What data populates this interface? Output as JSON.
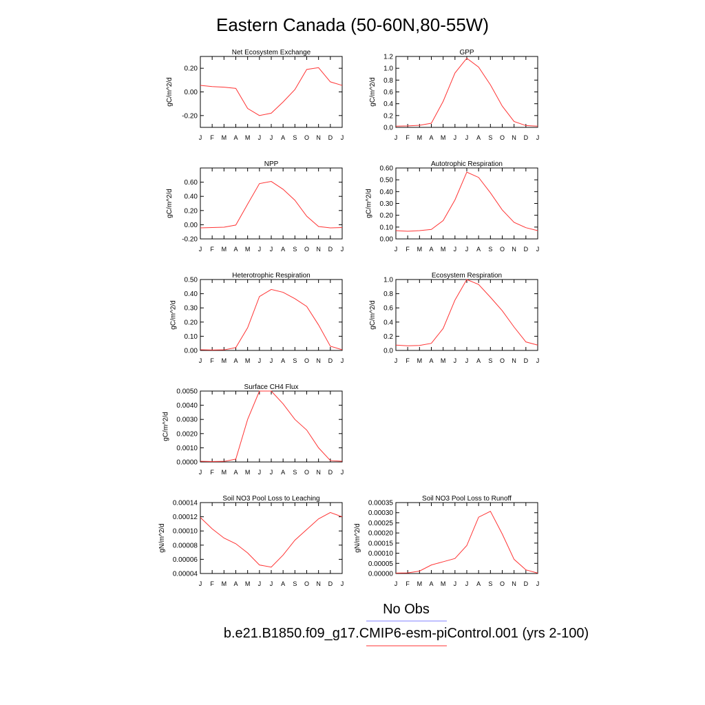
{
  "title": "Eastern Canada (50-60N,80-55W)",
  "months": [
    "J",
    "F",
    "M",
    "A",
    "M",
    "J",
    "J",
    "A",
    "S",
    "O",
    "N",
    "D",
    "J"
  ],
  "legend": {
    "obs_label": "No Obs",
    "obs_color": "#8080ff",
    "model_label": "b.e21.B1850.f09_g17.CMIP6-esm-piControl.001 (yrs 2-100)",
    "model_color": "#ff3333"
  },
  "chart_data": [
    {
      "type": "line",
      "title": "Net Ecosystem Exchange",
      "ylabel": "gC/m^2/d",
      "ylim": [
        -0.3,
        0.3
      ],
      "yticks": [
        "-0.20",
        "0.00",
        "0.20"
      ],
      "ytick_values": [
        -0.2,
        0.0,
        0.2
      ],
      "series": [
        {
          "values": [
            0.055,
            0.045,
            0.04,
            0.03,
            -0.14,
            -0.2,
            -0.18,
            -0.085,
            0.02,
            0.19,
            0.205,
            0.085,
            0.055
          ]
        }
      ]
    },
    {
      "type": "line",
      "title": "GPP",
      "ylabel": "gC/m^2/d",
      "ylim": [
        0,
        1.2
      ],
      "yticks": [
        "0.0",
        "0.2",
        "0.4",
        "0.6",
        "0.8",
        "1.0",
        "1.2"
      ],
      "ytick_values": [
        0,
        0.2,
        0.4,
        0.6,
        0.8,
        1.0,
        1.2
      ],
      "series": [
        {
          "values": [
            0.02,
            0.025,
            0.035,
            0.07,
            0.44,
            0.92,
            1.17,
            1.02,
            0.72,
            0.36,
            0.1,
            0.03,
            0.02
          ]
        }
      ]
    },
    {
      "type": "line",
      "title": "NPP",
      "ylabel": "gC/m^2/d",
      "ylim": [
        -0.2,
        0.8
      ],
      "yticks": [
        "-0.20",
        "0.00",
        "0.20",
        "0.40",
        "0.60"
      ],
      "ytick_values": [
        -0.2,
        0.0,
        0.2,
        0.4,
        0.6
      ],
      "series": [
        {
          "values": [
            -0.045,
            -0.04,
            -0.035,
            -0.005,
            0.29,
            0.58,
            0.61,
            0.5,
            0.345,
            0.12,
            -0.025,
            -0.045,
            -0.04
          ]
        }
      ]
    },
    {
      "type": "line",
      "title": "Autotrophic Respiration",
      "ylabel": "gC/m^2/d",
      "ylim": [
        0,
        0.6
      ],
      "yticks": [
        "0.00",
        "0.10",
        "0.20",
        "0.30",
        "0.40",
        "0.50",
        "0.60"
      ],
      "ytick_values": [
        0,
        0.1,
        0.2,
        0.3,
        0.4,
        0.5,
        0.6
      ],
      "series": [
        {
          "values": [
            0.07,
            0.065,
            0.07,
            0.08,
            0.155,
            0.33,
            0.565,
            0.52,
            0.39,
            0.245,
            0.14,
            0.095,
            0.07
          ]
        }
      ]
    },
    {
      "type": "line",
      "title": "Heterotrophic Respiration",
      "ylabel": "gC/m^2/d",
      "ylim": [
        0,
        0.5
      ],
      "yticks": [
        "0.00",
        "0.10",
        "0.20",
        "0.30",
        "0.40",
        "0.50"
      ],
      "ytick_values": [
        0,
        0.1,
        0.2,
        0.3,
        0.4,
        0.5
      ],
      "series": [
        {
          "values": [
            0.005,
            0.003,
            0.004,
            0.02,
            0.16,
            0.38,
            0.43,
            0.41,
            0.365,
            0.31,
            0.18,
            0.03,
            0.005
          ]
        }
      ]
    },
    {
      "type": "line",
      "title": "Ecosystem Respiration",
      "ylabel": "gC/m^2/d",
      "ylim": [
        0,
        1.0
      ],
      "yticks": [
        "0.0",
        "0.2",
        "0.4",
        "0.6",
        "0.8",
        "1.0"
      ],
      "ytick_values": [
        0,
        0.2,
        0.4,
        0.6,
        0.8,
        1.0
      ],
      "series": [
        {
          "values": [
            0.075,
            0.065,
            0.07,
            0.1,
            0.31,
            0.71,
            1.0,
            0.93,
            0.75,
            0.56,
            0.33,
            0.12,
            0.075
          ]
        }
      ]
    },
    {
      "type": "line",
      "title": "Surface CH4 Flux",
      "ylabel": "gC/m^2/d",
      "ylim": [
        0,
        0.005
      ],
      "yticks": [
        "0.0000",
        "0.0010",
        "0.0020",
        "0.0030",
        "0.0040",
        "0.0050"
      ],
      "ytick_values": [
        0,
        0.001,
        0.002,
        0.003,
        0.004,
        0.005
      ],
      "series": [
        {
          "values": [
            5e-05,
            3e-05,
            4e-05,
            0.0002,
            0.003,
            0.005,
            0.005,
            0.0041,
            0.003,
            0.00225,
            0.001,
            0.0001,
            5e-05
          ]
        }
      ]
    },
    {
      "type": "line",
      "title": "Soil NO3 Pool Loss to Leaching",
      "ylabel": "gN/m^2/d",
      "ylim": [
        4e-05,
        0.00014
      ],
      "yticks": [
        "0.00004",
        "0.00006",
        "0.00008",
        "0.00010",
        "0.00012",
        "0.00014"
      ],
      "ytick_values": [
        4e-05,
        6e-05,
        8e-05,
        0.0001,
        0.00012,
        0.00014
      ],
      "series": [
        {
          "values": [
            0.000119,
            0.000103,
            9e-05,
            8.2e-05,
            6.9e-05,
            5.2e-05,
            4.9e-05,
            6.6e-05,
            8.7e-05,
            0.000102,
            0.000117,
            0.000126,
            0.00012
          ]
        }
      ]
    },
    {
      "type": "line",
      "title": "Soil NO3 Pool Loss to Runoff",
      "ylabel": "gN/m^2/d",
      "ylim": [
        0,
        0.00035
      ],
      "yticks": [
        "0.00000",
        "0.00005",
        "0.00010",
        "0.00015",
        "0.00020",
        "0.00025",
        "0.00030",
        "0.00035"
      ],
      "ytick_values": [
        0,
        5e-05,
        0.0001,
        0.00015,
        0.0002,
        0.00025,
        0.0003,
        0.00035
      ],
      "series": [
        {
          "values": [
            2e-06,
            3e-06,
            1.2e-05,
            4.2e-05,
            5.8e-05,
            7.4e-05,
            0.000138,
            0.000278,
            0.000307,
            0.000195,
            7e-05,
            1.8e-05,
            2e-06
          ]
        }
      ]
    }
  ]
}
